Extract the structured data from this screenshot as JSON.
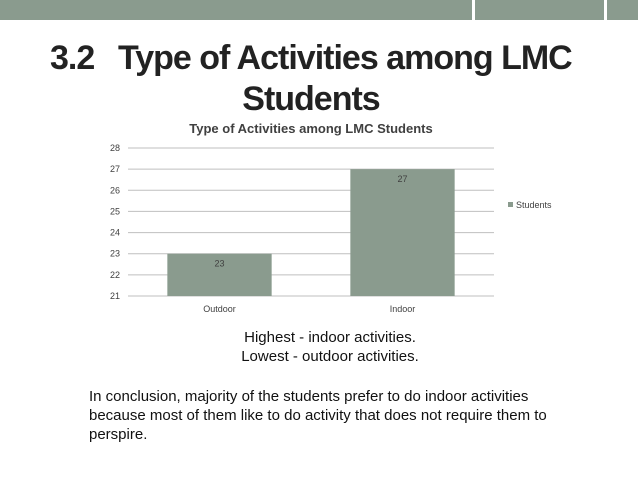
{
  "slide": {
    "title_number": "3.2",
    "title_line1": "Type of Activities among LMC",
    "title_line2": "Students",
    "highlight_highest": "Highest - indoor activities.",
    "highlight_lowest": "Lowest - outdoor activities.",
    "conclusion": "In conclusion, majority of the students prefer to do indoor activities because most of them like to do activity that does not require them to perspire.",
    "colors": {
      "band": "#8a9b8e",
      "bar": "#8a9b8e"
    }
  },
  "chart_data": {
    "type": "bar",
    "title": "Type of Activities among LMC Students",
    "categories": [
      "Outdoor",
      "Indoor"
    ],
    "series": [
      {
        "name": "Students",
        "values": [
          23,
          27
        ]
      }
    ],
    "ylim": [
      21,
      28
    ],
    "yticks": [
      21,
      22,
      23,
      24,
      25,
      26,
      27,
      28
    ],
    "xlabel": "",
    "ylabel": "",
    "grid": true,
    "legend": "right"
  }
}
